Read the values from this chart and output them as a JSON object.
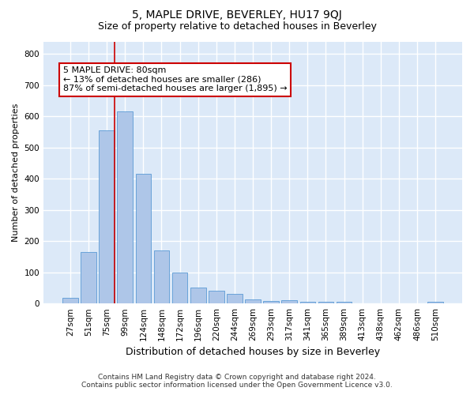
{
  "title": "5, MAPLE DRIVE, BEVERLEY, HU17 9QJ",
  "subtitle": "Size of property relative to detached houses in Beverley",
  "xlabel": "Distribution of detached houses by size in Beverley",
  "ylabel": "Number of detached properties",
  "categories": [
    "27sqm",
    "51sqm",
    "75sqm",
    "99sqm",
    "124sqm",
    "148sqm",
    "172sqm",
    "196sqm",
    "220sqm",
    "244sqm",
    "269sqm",
    "293sqm",
    "317sqm",
    "341sqm",
    "365sqm",
    "389sqm",
    "413sqm",
    "438sqm",
    "462sqm",
    "486sqm",
    "510sqm"
  ],
  "values": [
    18,
    165,
    555,
    615,
    415,
    170,
    100,
    52,
    40,
    30,
    14,
    8,
    10,
    5,
    5,
    5,
    0,
    0,
    0,
    0,
    5
  ],
  "bar_color": "#aec6e8",
  "bar_edge_color": "#5b9bd5",
  "background_color": "#dce9f8",
  "grid_color": "#ffffff",
  "vline_color": "#cc0000",
  "annotation_text": "5 MAPLE DRIVE: 80sqm\n← 13% of detached houses are smaller (286)\n87% of semi-detached houses are larger (1,895) →",
  "annotation_box_color": "#cc0000",
  "footer_line1": "Contains HM Land Registry data © Crown copyright and database right 2024.",
  "footer_line2": "Contains public sector information licensed under the Open Government Licence v3.0.",
  "ylim": [
    0,
    840
  ],
  "yticks": [
    0,
    100,
    200,
    300,
    400,
    500,
    600,
    700,
    800
  ],
  "title_fontsize": 10,
  "subtitle_fontsize": 9,
  "xlabel_fontsize": 9,
  "ylabel_fontsize": 8,
  "tick_fontsize": 7.5,
  "footer_fontsize": 6.5,
  "annotation_fontsize": 8
}
